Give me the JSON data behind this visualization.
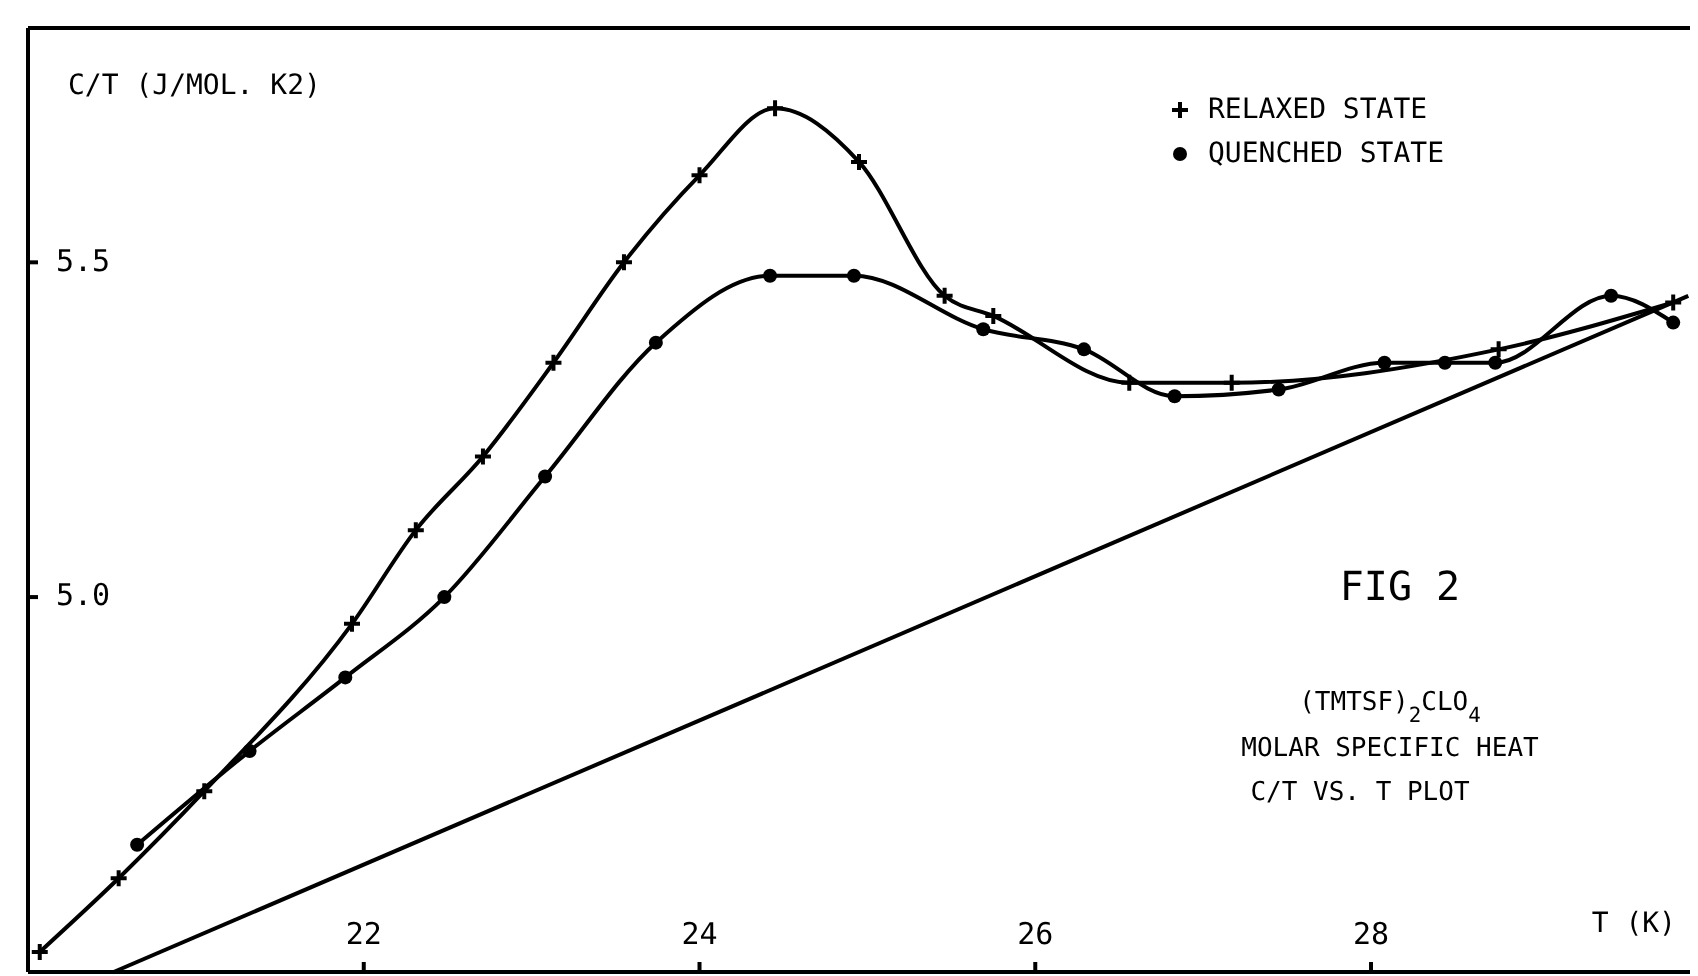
{
  "chart_data": {
    "type": "line",
    "xlabel": "T (K)",
    "ylabel": "C/T (J/MOL. K2)",
    "xlim": [
      20,
      29.9
    ],
    "ylim": [
      4.44,
      5.85
    ],
    "xticks": [
      22,
      24,
      26,
      28
    ],
    "yticks": [
      {
        "value": 5,
        "label": "5.0"
      },
      5.5
    ],
    "legend": "top right",
    "grid": false,
    "series": [
      {
        "name": "RELAXED STATE",
        "color": "#000000",
        "marker": "cross",
        "x": [
          20.07,
          20.54,
          21.05,
          21.93,
          22.31,
          22.71,
          23.13,
          23.55,
          24.0,
          24.45,
          24.95,
          25.46,
          25.75,
          26.56,
          27.17,
          28.76,
          29.8
        ],
        "values": [
          4.47,
          4.58,
          4.71,
          4.96,
          5.1,
          5.21,
          5.35,
          5.5,
          5.63,
          5.73,
          5.65,
          5.45,
          5.42,
          5.32,
          5.32,
          5.37,
          5.44
        ]
      },
      {
        "name": "QUENCHED STATE",
        "color": "#000000",
        "marker": "circle",
        "x": [
          20.65,
          21.32,
          21.89,
          22.48,
          23.08,
          23.74,
          24.42,
          24.92,
          25.69,
          26.29,
          26.83,
          27.45,
          28.08,
          28.44,
          28.74,
          29.43,
          29.8
        ],
        "values": [
          4.63,
          4.77,
          4.88,
          5.0,
          5.18,
          5.38,
          5.48,
          5.48,
          5.4,
          5.37,
          5.3,
          5.31,
          5.35,
          5.35,
          5.35,
          5.45,
          5.41
        ]
      },
      {
        "color": "#000000",
        "marker": "none",
        "x": [
          20.51,
          29.89
        ],
        "values": [
          4.44,
          5.45
        ]
      }
    ],
    "annotations": [
      "FIG 2",
      "(TMTSF)$_{2}$CLO$_{4}$",
      "MOLAR SPECIFIC HEAT",
      "C/T VS. T PLOT"
    ]
  }
}
